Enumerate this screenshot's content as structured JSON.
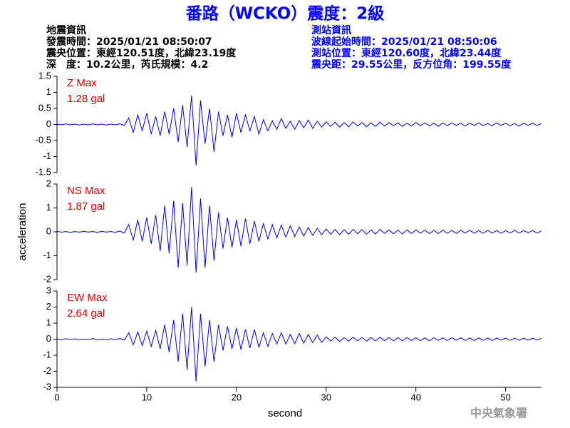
{
  "header": {
    "title": "番路（WCKO）震度：2級",
    "left": [
      "地震資訊",
      "發震時間：2025/01/21 08:50:07",
      "震央位置：東經120.51度，北緯23.19度",
      "深　度：10.2公里，芮氏規模：4.2"
    ],
    "right": [
      "測站資訊",
      "波線起始時間：2025/01/21 08:50:06",
      "測站位置：東經120.60度，北緯23.44度",
      "震央距：29.55公里，反方位角：199.55度"
    ]
  },
  "footer": "中央氣象署",
  "chart_data": [
    {
      "type": "line",
      "annotation": [
        "Z Max",
        "1.28 gal"
      ],
      "color": "#0000ff",
      "xlim": [
        0,
        54
      ],
      "ylim": [
        -1.5,
        1.5
      ],
      "yticks": [
        1.5,
        1,
        0.5,
        0,
        -0.5,
        -1,
        -1.5
      ],
      "x": [
        0,
        0.5,
        1,
        1.5,
        2,
        2.5,
        3,
        3.5,
        4,
        4.5,
        5,
        5.5,
        6,
        6.5,
        7,
        7.5,
        8,
        8.5,
        9,
        9.5,
        10,
        10.5,
        11,
        11.5,
        12,
        12.5,
        13,
        13.5,
        14,
        14.5,
        15,
        15.5,
        16,
        16.5,
        17,
        17.5,
        18,
        18.5,
        19,
        19.5,
        20,
        20.5,
        21,
        21.5,
        22,
        22.5,
        23,
        23.5,
        24,
        24.5,
        25,
        25.5,
        26,
        26.5,
        27,
        27.5,
        28,
        28.5,
        29,
        29.5,
        30,
        30.5,
        31,
        31.5,
        32,
        32.5,
        33,
        33.5,
        34,
        34.5,
        35,
        35.5,
        36,
        36.5,
        37,
        37.5,
        38,
        38.5,
        39,
        39.5,
        40,
        40.5,
        41,
        41.5,
        42,
        42.5,
        43,
        43.5,
        44,
        44.5,
        45,
        45.5,
        46,
        46.5,
        47,
        47.5,
        48,
        48.5,
        49,
        49.5,
        50,
        50.5,
        51,
        51.5,
        52,
        52.5,
        53,
        53.5,
        54
      ],
      "values": [
        0.01,
        -0.01,
        0.02,
        -0.01,
        0.01,
        -0.02,
        0.01,
        -0.01,
        0.02,
        -0.01,
        0.01,
        -0.02,
        0.01,
        -0.01,
        0.02,
        -0.03,
        0.2,
        -0.25,
        0.3,
        -0.2,
        0.35,
        -0.3,
        0.25,
        -0.35,
        0.4,
        -0.3,
        0.5,
        -0.55,
        0.6,
        -0.7,
        0.9,
        -1.28,
        0.75,
        -0.6,
        0.5,
        -0.85,
        0.4,
        -0.35,
        0.3,
        -0.4,
        0.35,
        -0.25,
        0.3,
        -0.2,
        0.25,
        -0.3,
        0.15,
        -0.2,
        0.12,
        -0.15,
        0.18,
        -0.12,
        0.1,
        -0.15,
        0.12,
        -0.1,
        0.14,
        -0.12,
        0.1,
        -0.08,
        0.08,
        -0.06,
        0.07,
        -0.08,
        0.06,
        -0.07,
        0.08,
        -0.05,
        0.06,
        -0.07,
        0.05,
        -0.06,
        0.07,
        -0.05,
        0.06,
        -0.04,
        0.05,
        -0.06,
        0.04,
        -0.05,
        0.06,
        -0.04,
        0.05,
        -0.05,
        0.04,
        -0.06,
        0.05,
        -0.04,
        0.05,
        -0.03,
        0.04,
        -0.05,
        0.04,
        -0.03,
        0.05,
        -0.04,
        0.03,
        -0.04,
        0.05,
        -0.03,
        0.04,
        -0.04,
        0.03,
        -0.05,
        0.04,
        -0.03,
        0.04,
        -0.03,
        0.03
      ]
    },
    {
      "type": "line",
      "annotation": [
        "NS Max",
        "1.87 gal"
      ],
      "color": "#0000ff",
      "ylabel": "acceleration",
      "xlim": [
        0,
        54
      ],
      "ylim": [
        -2,
        2
      ],
      "yticks": [
        2,
        1,
        0,
        -1,
        -2
      ],
      "x": [
        0,
        0.5,
        1,
        1.5,
        2,
        2.5,
        3,
        3.5,
        4,
        4.5,
        5,
        5.5,
        6,
        6.5,
        7,
        7.5,
        8,
        8.5,
        9,
        9.5,
        10,
        10.5,
        11,
        11.5,
        12,
        12.5,
        13,
        13.5,
        14,
        14.5,
        15,
        15.5,
        16,
        16.5,
        17,
        17.5,
        18,
        18.5,
        19,
        19.5,
        20,
        20.5,
        21,
        21.5,
        22,
        22.5,
        23,
        23.5,
        24,
        24.5,
        25,
        25.5,
        26,
        26.5,
        27,
        27.5,
        28,
        28.5,
        29,
        29.5,
        30,
        30.5,
        31,
        31.5,
        32,
        32.5,
        33,
        33.5,
        34,
        34.5,
        35,
        35.5,
        36,
        36.5,
        37,
        37.5,
        38,
        38.5,
        39,
        39.5,
        40,
        40.5,
        41,
        41.5,
        42,
        42.5,
        43,
        43.5,
        44,
        44.5,
        45,
        45.5,
        46,
        46.5,
        47,
        47.5,
        48,
        48.5,
        49,
        49.5,
        50,
        50.5,
        51,
        51.5,
        52,
        52.5,
        53,
        53.5,
        54
      ],
      "values": [
        0.02,
        -0.01,
        0.01,
        -0.02,
        0.01,
        -0.01,
        0.02,
        -0.01,
        0.01,
        -0.02,
        0.02,
        -0.01,
        0.01,
        -0.02,
        0.03,
        -0.05,
        0.3,
        -0.35,
        0.5,
        -0.4,
        0.6,
        -0.5,
        0.7,
        -0.8,
        1.1,
        -0.9,
        1.3,
        -1.5,
        1.2,
        -1.4,
        1.87,
        -1.7,
        1.4,
        -1.5,
        1.1,
        -1.2,
        0.8,
        -0.7,
        0.6,
        -0.65,
        0.5,
        -0.6,
        0.55,
        -0.5,
        0.45,
        -0.4,
        0.35,
        -0.3,
        0.3,
        -0.25,
        0.28,
        -0.22,
        0.25,
        -0.2,
        0.2,
        -0.18,
        0.18,
        -0.15,
        0.15,
        -0.12,
        0.12,
        -0.1,
        0.1,
        -0.12,
        0.09,
        -0.1,
        0.1,
        -0.08,
        0.09,
        -0.1,
        0.08,
        -0.09,
        0.1,
        -0.07,
        0.08,
        -0.08,
        0.07,
        -0.09,
        0.08,
        -0.07,
        0.08,
        -0.06,
        0.07,
        -0.08,
        0.06,
        -0.07,
        0.07,
        -0.06,
        0.06,
        -0.07,
        0.06,
        -0.05,
        0.06,
        -0.06,
        0.05,
        -0.06,
        0.06,
        -0.05,
        0.05,
        -0.06,
        0.05,
        -0.05,
        0.06,
        -0.05,
        0.05,
        -0.04,
        0.05,
        -0.05,
        0.04
      ]
    },
    {
      "type": "line",
      "annotation": [
        "EW Max",
        "2.64 gal"
      ],
      "color": "#0000ff",
      "xlabel": "second",
      "xlim": [
        0,
        54
      ],
      "xticks": [
        0,
        10,
        20,
        30,
        40,
        50
      ],
      "ylim": [
        -3,
        3
      ],
      "yticks": [
        3,
        2,
        1,
        0,
        -1,
        -2,
        -3
      ],
      "x": [
        0,
        0.5,
        1,
        1.5,
        2,
        2.5,
        3,
        3.5,
        4,
        4.5,
        5,
        5.5,
        6,
        6.5,
        7,
        7.5,
        8,
        8.5,
        9,
        9.5,
        10,
        10.5,
        11,
        11.5,
        12,
        12.5,
        13,
        13.5,
        14,
        14.5,
        15,
        15.5,
        16,
        16.5,
        17,
        17.5,
        18,
        18.5,
        19,
        19.5,
        20,
        20.5,
        21,
        21.5,
        22,
        22.5,
        23,
        23.5,
        24,
        24.5,
        25,
        25.5,
        26,
        26.5,
        27,
        27.5,
        28,
        28.5,
        29,
        29.5,
        30,
        30.5,
        31,
        31.5,
        32,
        32.5,
        33,
        33.5,
        34,
        34.5,
        35,
        35.5,
        36,
        36.5,
        37,
        37.5,
        38,
        38.5,
        39,
        39.5,
        40,
        40.5,
        41,
        41.5,
        42,
        42.5,
        43,
        43.5,
        44,
        44.5,
        45,
        45.5,
        46,
        46.5,
        47,
        47.5,
        48,
        48.5,
        49,
        49.5,
        50,
        50.5,
        51,
        51.5,
        52,
        52.5,
        53,
        53.5,
        54
      ],
      "values": [
        0.02,
        -0.02,
        0.03,
        -0.01,
        0.02,
        -0.03,
        0.01,
        -0.02,
        0.03,
        -0.02,
        0.01,
        -0.03,
        0.02,
        -0.02,
        0.04,
        -0.05,
        0.4,
        -0.35,
        0.45,
        -0.4,
        0.5,
        -0.45,
        0.55,
        -0.6,
        0.9,
        -0.8,
        1.2,
        -1.4,
        1.6,
        -1.9,
        2.0,
        -2.64,
        1.6,
        -1.7,
        1.2,
        -1.4,
        0.9,
        -0.7,
        0.8,
        -0.6,
        0.7,
        -0.65,
        0.6,
        -0.55,
        0.6,
        -0.5,
        0.4,
        -0.45,
        0.35,
        -0.3,
        0.4,
        -0.3,
        0.3,
        -0.28,
        0.35,
        -0.25,
        0.3,
        -0.22,
        0.25,
        -0.2,
        0.15,
        -0.12,
        0.12,
        -0.14,
        0.1,
        -0.12,
        0.12,
        -0.1,
        0.11,
        -0.12,
        0.1,
        -0.1,
        0.12,
        -0.09,
        0.1,
        -0.1,
        0.09,
        -0.1,
        0.1,
        -0.08,
        0.09,
        -0.09,
        0.08,
        -0.1,
        0.09,
        -0.08,
        0.08,
        -0.08,
        0.09,
        -0.07,
        0.08,
        -0.08,
        0.07,
        -0.08,
        0.08,
        -0.07,
        0.07,
        -0.08,
        0.07,
        -0.06,
        0.07,
        -0.07,
        0.06,
        -0.07,
        0.06,
        -0.06,
        0.06,
        -0.05,
        0.05
      ]
    }
  ]
}
